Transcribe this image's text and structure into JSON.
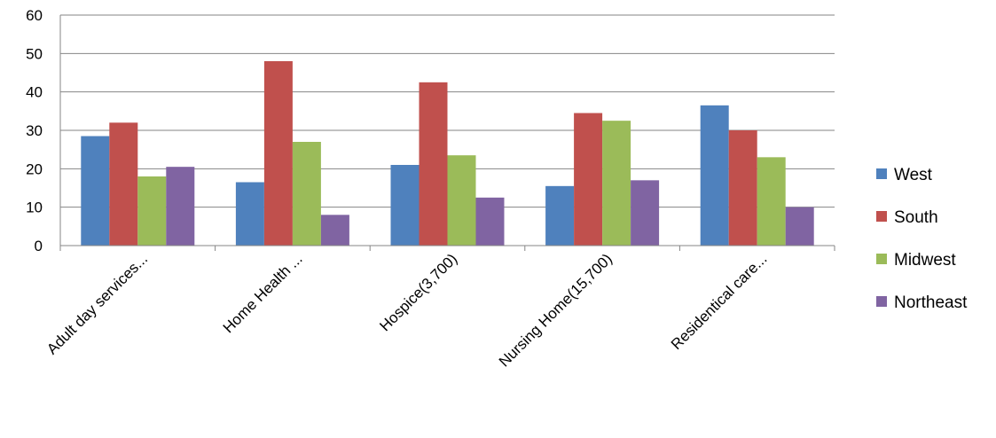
{
  "chart_data": {
    "type": "bar",
    "title": "",
    "xlabel": "",
    "ylabel": "",
    "ylim": [
      0,
      60
    ],
    "yticks": [
      0,
      10,
      20,
      30,
      40,
      50,
      60
    ],
    "grid": true,
    "legend_position": "right",
    "categories": [
      "Adult day services...",
      "Home Health ...",
      "Hospice(3,700)",
      "Nursing Home(15,700)",
      "Residentical care..."
    ],
    "series": [
      {
        "name": "West",
        "color": "#4F81BD",
        "values": [
          28.5,
          16.5,
          21,
          15.5,
          36.5
        ]
      },
      {
        "name": "South",
        "color": "#C0504D",
        "values": [
          32,
          48,
          42.5,
          34.5,
          30
        ]
      },
      {
        "name": "Midwest",
        "color": "#9BBB59",
        "values": [
          18,
          27,
          23.5,
          32.5,
          23
        ]
      },
      {
        "name": "Northeast",
        "color": "#8064A2",
        "values": [
          20.5,
          8,
          12.5,
          17,
          10
        ]
      }
    ]
  }
}
